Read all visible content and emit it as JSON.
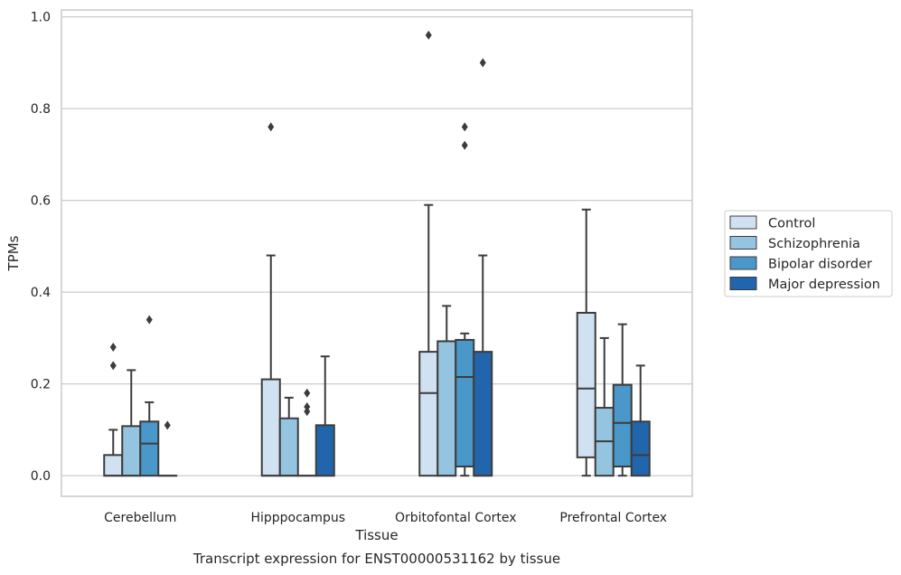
{
  "chart_data": {
    "type": "box",
    "title": "",
    "caption": "Transcript expression for ENST00000531162 by tissue",
    "xlabel": "Tissue",
    "ylabel": "TPMs",
    "ylim": [
      -0.045,
      1.015
    ],
    "yticks": [
      "0.0",
      "0.2",
      "0.4",
      "0.6",
      "0.8",
      "1.0"
    ],
    "ytick_values": [
      0.0,
      0.2,
      0.4,
      0.6,
      0.8,
      1.0
    ],
    "grid": true,
    "legend_position": "right",
    "categories": [
      "Cerebellum",
      "Hipppocampus",
      "Orbitofontal Cortex",
      "Prefrontal Cortex"
    ],
    "series": [
      {
        "name": "Control",
        "color": "#d0e1f2",
        "boxes": [
          {
            "q1": 0.0,
            "median": 0.0,
            "q3": 0.045,
            "whisker_low": 0.0,
            "whisker_high": 0.1,
            "outliers": [
              0.24,
              0.28
            ]
          },
          {
            "q1": 0.0,
            "median": 0.0,
            "q3": 0.21,
            "whisker_low": 0.0,
            "whisker_high": 0.48,
            "outliers": [
              0.76
            ]
          },
          {
            "q1": 0.0,
            "median": 0.18,
            "q3": 0.27,
            "whisker_low": 0.0,
            "whisker_high": 0.59,
            "outliers": [
              0.96
            ]
          },
          {
            "q1": 0.04,
            "median": 0.19,
            "q3": 0.355,
            "whisker_low": 0.0,
            "whisker_high": 0.58,
            "outliers": []
          }
        ]
      },
      {
        "name": "Schizophrenia",
        "color": "#94c4df",
        "boxes": [
          {
            "q1": 0.0,
            "median": 0.0,
            "q3": 0.108,
            "whisker_low": 0.0,
            "whisker_high": 0.23,
            "outliers": []
          },
          {
            "q1": 0.0,
            "median": 0.0,
            "q3": 0.125,
            "whisker_low": 0.0,
            "whisker_high": 0.17,
            "outliers": []
          },
          {
            "q1": 0.0,
            "median": 0.0,
            "q3": 0.293,
            "whisker_low": 0.0,
            "whisker_high": 0.37,
            "outliers": []
          },
          {
            "q1": 0.0,
            "median": 0.075,
            "q3": 0.148,
            "whisker_low": 0.0,
            "whisker_high": 0.3,
            "outliers": []
          }
        ]
      },
      {
        "name": "Bipolar disorder",
        "color": "#4a98c9",
        "boxes": [
          {
            "q1": 0.0,
            "median": 0.07,
            "q3": 0.118,
            "whisker_low": 0.0,
            "whisker_high": 0.16,
            "outliers": [
              0.34
            ]
          },
          {
            "q1": 0.0,
            "median": 0.0,
            "q3": 0.0,
            "whisker_low": 0.0,
            "whisker_high": 0.0,
            "outliers": [
              0.14,
              0.15,
              0.18
            ]
          },
          {
            "q1": 0.02,
            "median": 0.215,
            "q3": 0.296,
            "whisker_low": 0.0,
            "whisker_high": 0.31,
            "outliers": [
              0.72,
              0.76
            ]
          },
          {
            "q1": 0.02,
            "median": 0.115,
            "q3": 0.198,
            "whisker_low": 0.0,
            "whisker_high": 0.33,
            "outliers": []
          }
        ]
      },
      {
        "name": "Major depression",
        "color": "#2166ac",
        "boxes": [
          {
            "q1": 0.0,
            "median": 0.0,
            "q3": 0.0,
            "whisker_low": 0.0,
            "whisker_high": 0.0,
            "outliers": [
              0.11
            ]
          },
          {
            "q1": 0.0,
            "median": 0.0,
            "q3": 0.11,
            "whisker_low": 0.0,
            "whisker_high": 0.26,
            "outliers": []
          },
          {
            "q1": 0.0,
            "median": 0.0,
            "q3": 0.27,
            "whisker_low": 0.0,
            "whisker_high": 0.48,
            "outliers": [
              0.9
            ]
          },
          {
            "q1": 0.0,
            "median": 0.045,
            "q3": 0.118,
            "whisker_low": 0.0,
            "whisker_high": 0.24,
            "outliers": []
          }
        ]
      }
    ]
  }
}
